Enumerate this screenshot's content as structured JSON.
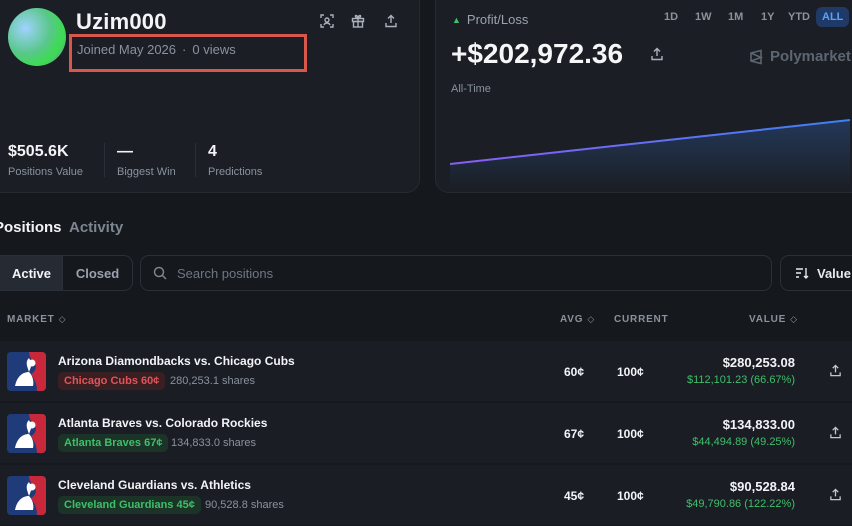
{
  "profile": {
    "username": "Uzim000",
    "joined": "Joined May 2026",
    "separator": "·",
    "views": "0 views",
    "stats": [
      {
        "value": "$505.6K",
        "label": "Positions Value"
      },
      {
        "value": "—",
        "label": "Biggest Win"
      },
      {
        "value": "4",
        "label": "Predictions"
      }
    ]
  },
  "pnl": {
    "title": "Profit/Loss",
    "ranges": [
      "1D",
      "1W",
      "1M",
      "1Y",
      "YTD",
      "ALL"
    ],
    "active_range": "ALL",
    "value": "+$202,972.36",
    "period": "All-Time",
    "brand": "Polymarket",
    "colors": {
      "line_start": "#8b5cf6",
      "line_end": "#3b82f6",
      "up": "#3fbf6a"
    }
  },
  "tabs": {
    "positions": "Positions",
    "activity": "Activity"
  },
  "filter": {
    "active": "Active",
    "closed": "Closed"
  },
  "search": {
    "placeholder": "Search positions"
  },
  "sort": {
    "label": "Value"
  },
  "table": {
    "headers": {
      "market": "MARKET",
      "avg": "AVG",
      "current": "CURRENT",
      "value": "VALUE"
    },
    "rows": [
      {
        "title": "Arizona Diamondbacks vs. Chicago Cubs",
        "outcome": "Chicago Cubs 60¢",
        "outcome_color": "red",
        "shares": "280,253.1 shares",
        "avg": "60¢",
        "current": "100¢",
        "value": "$280,253.08",
        "pnl": "$112,101.23 (66.67%)"
      },
      {
        "title": "Atlanta Braves vs. Colorado Rockies",
        "outcome": "Atlanta Braves 67¢",
        "outcome_color": "green",
        "shares": "134,833.0 shares",
        "avg": "67¢",
        "current": "100¢",
        "value": "$134,833.00",
        "pnl": "$44,494.89 (49.25%)"
      },
      {
        "title": "Cleveland Guardians vs. Athletics",
        "outcome": "Cleveland Guardians 45¢",
        "outcome_color": "green",
        "shares": "90,528.8 shares",
        "avg": "45¢",
        "current": "100¢",
        "value": "$90,528.84",
        "pnl": "$49,790.86 (122.22%)"
      }
    ]
  }
}
